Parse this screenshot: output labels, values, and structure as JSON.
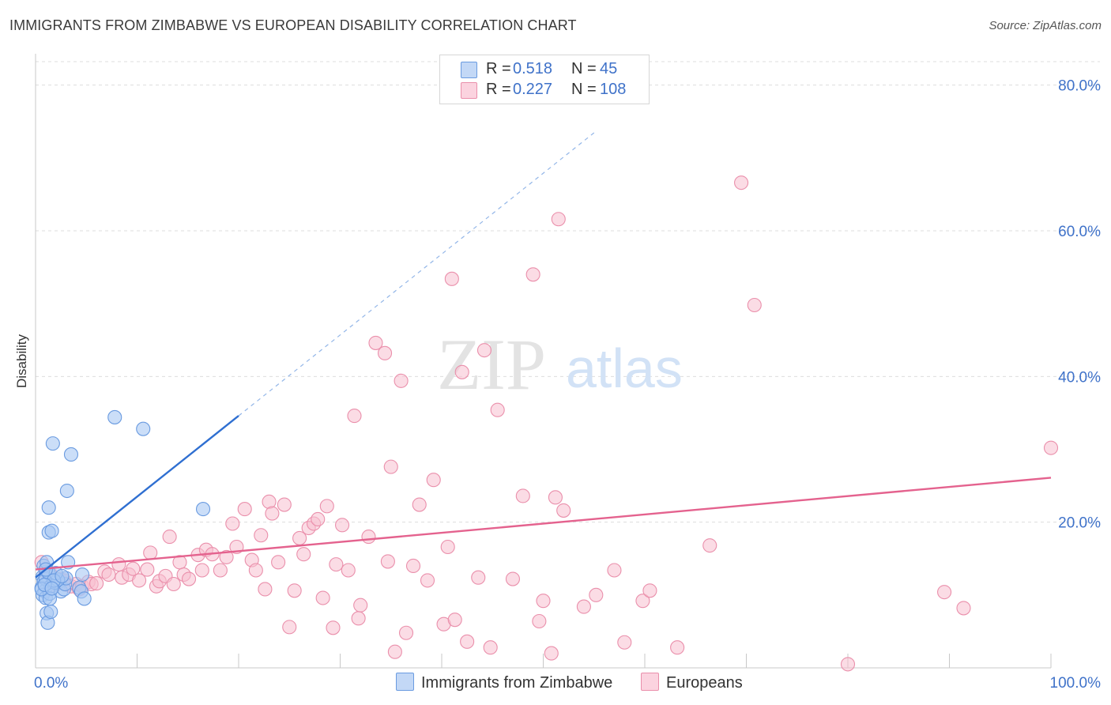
{
  "title": "IMMIGRANTS FROM ZIMBABWE VS EUROPEAN DISABILITY CORRELATION CHART",
  "source": "Source: ZipAtlas.com",
  "watermark": {
    "zip": "ZIP",
    "atlas": "atlas"
  },
  "legend": {
    "series": [
      {
        "r_label": "R =",
        "r_value": "0.518",
        "n_label": "N =",
        "n_value": "45"
      },
      {
        "r_label": "R =",
        "r_value": "0.227",
        "n_label": "N =",
        "n_value": "108"
      }
    ]
  },
  "bottom_legend": {
    "items": [
      "Immigrants from Zimbabwe",
      "Europeans"
    ]
  },
  "colors": {
    "blue_fill": "#a9c8f3",
    "blue_stroke": "#6a9be0",
    "blue_line": "#2f6fd1",
    "pink_fill": "#f7bfd0",
    "pink_stroke": "#ea8fab",
    "pink_line": "#e4628e",
    "accent_text": "#3f72c9",
    "grid": "#dddddd"
  },
  "chart_data": {
    "type": "scatter",
    "title": "IMMIGRANTS FROM ZIMBABWE VS EUROPEAN DISABILITY CORRELATION CHART",
    "xlabel": "",
    "ylabel": "Disability",
    "xlim": [
      0,
      100
    ],
    "ylim": [
      0,
      83
    ],
    "x_tick_labels": [
      "0.0%",
      "100.0%"
    ],
    "y_ticks": [
      20,
      40,
      60,
      80
    ],
    "y_tick_labels": [
      "20.0%",
      "40.0%",
      "60.0%",
      "80.0%"
    ],
    "grid": true,
    "legend_position": "top-center",
    "series": [
      {
        "name": "Immigrants from Zimbabwe",
        "color": "#a9c8f3",
        "trend": {
          "x": [
            0.0,
            20.0
          ],
          "y": [
            12.4,
            34.6
          ],
          "dashed_extension_to_x": 55
        },
        "points": [
          [
            0.7,
            12.5
          ],
          [
            0.8,
            11.8
          ],
          [
            0.6,
            11.0
          ],
          [
            0.9,
            10.5
          ],
          [
            1.0,
            12.2
          ],
          [
            1.2,
            13.2
          ],
          [
            0.8,
            14.0
          ],
          [
            1.1,
            14.5
          ],
          [
            1.3,
            13.0
          ],
          [
            1.5,
            11.2
          ],
          [
            0.7,
            10.0
          ],
          [
            1.0,
            9.6
          ],
          [
            1.4,
            10.2
          ],
          [
            1.1,
            7.5
          ],
          [
            1.2,
            6.2
          ],
          [
            1.5,
            7.7
          ],
          [
            1.4,
            9.5
          ],
          [
            1.3,
            18.6
          ],
          [
            1.6,
            18.8
          ],
          [
            1.3,
            22.0
          ],
          [
            1.7,
            30.8
          ],
          [
            2.3,
            11.8
          ],
          [
            2.5,
            10.5
          ],
          [
            2.8,
            10.8
          ],
          [
            2.9,
            11.5
          ],
          [
            3.2,
            14.5
          ],
          [
            3.0,
            12.3
          ],
          [
            3.1,
            24.3
          ],
          [
            3.5,
            29.3
          ],
          [
            4.3,
            11.0
          ],
          [
            4.5,
            10.5
          ],
          [
            4.6,
            12.8
          ],
          [
            4.8,
            9.5
          ],
          [
            7.8,
            34.4
          ],
          [
            10.6,
            32.8
          ],
          [
            16.5,
            21.8
          ],
          [
            1.9,
            11.7
          ],
          [
            2.2,
            12.1
          ],
          [
            0.6,
            10.8
          ],
          [
            2.0,
            13.0
          ],
          [
            1.8,
            12.0
          ],
          [
            0.9,
            11.4
          ],
          [
            1.6,
            10.9
          ],
          [
            2.6,
            12.6
          ],
          [
            1.0,
            13.5
          ]
        ]
      },
      {
        "name": "Europeans",
        "color": "#f7bfd0",
        "trend": {
          "x": [
            0.0,
            100.0
          ],
          "y": [
            13.5,
            26.1
          ]
        },
        "points": [
          [
            0.6,
            14.5
          ],
          [
            1.0,
            13.2
          ],
          [
            1.5,
            12.8
          ],
          [
            1.9,
            11.4
          ],
          [
            2.4,
            12.2
          ],
          [
            2.8,
            12.0
          ],
          [
            3.1,
            11.4
          ],
          [
            3.5,
            11.2
          ],
          [
            4.0,
            11.5
          ],
          [
            4.3,
            10.8
          ],
          [
            4.6,
            11.2
          ],
          [
            5.2,
            11.8
          ],
          [
            5.5,
            11.5
          ],
          [
            6.0,
            11.6
          ],
          [
            6.8,
            13.2
          ],
          [
            7.2,
            12.8
          ],
          [
            8.2,
            14.2
          ],
          [
            8.5,
            12.4
          ],
          [
            9.2,
            12.8
          ],
          [
            9.6,
            13.6
          ],
          [
            10.2,
            12.0
          ],
          [
            11.0,
            13.5
          ],
          [
            11.3,
            15.8
          ],
          [
            11.9,
            11.2
          ],
          [
            12.2,
            11.9
          ],
          [
            12.8,
            12.6
          ],
          [
            13.2,
            18.0
          ],
          [
            13.6,
            11.5
          ],
          [
            14.2,
            14.5
          ],
          [
            14.6,
            12.8
          ],
          [
            15.1,
            12.2
          ],
          [
            16.0,
            15.5
          ],
          [
            16.4,
            13.4
          ],
          [
            16.8,
            16.2
          ],
          [
            17.4,
            15.6
          ],
          [
            18.2,
            13.4
          ],
          [
            18.8,
            15.2
          ],
          [
            19.4,
            19.8
          ],
          [
            19.8,
            16.6
          ],
          [
            20.6,
            21.8
          ],
          [
            21.3,
            14.8
          ],
          [
            21.7,
            13.4
          ],
          [
            22.2,
            18.2
          ],
          [
            22.6,
            10.8
          ],
          [
            23.0,
            22.8
          ],
          [
            23.3,
            21.2
          ],
          [
            23.9,
            14.5
          ],
          [
            24.5,
            22.4
          ],
          [
            25.0,
            5.6
          ],
          [
            25.5,
            10.6
          ],
          [
            26.0,
            17.8
          ],
          [
            26.4,
            15.6
          ],
          [
            26.9,
            19.2
          ],
          [
            27.4,
            19.8
          ],
          [
            27.8,
            20.4
          ],
          [
            28.3,
            9.6
          ],
          [
            28.7,
            22.2
          ],
          [
            29.3,
            5.5
          ],
          [
            29.6,
            14.2
          ],
          [
            30.2,
            19.6
          ],
          [
            30.8,
            13.4
          ],
          [
            31.4,
            34.6
          ],
          [
            31.8,
            6.8
          ],
          [
            32.0,
            8.6
          ],
          [
            32.8,
            18.0
          ],
          [
            33.5,
            44.6
          ],
          [
            34.4,
            43.2
          ],
          [
            34.7,
            14.6
          ],
          [
            35.0,
            27.6
          ],
          [
            35.4,
            2.2
          ],
          [
            36.0,
            39.4
          ],
          [
            36.5,
            4.8
          ],
          [
            37.2,
            14.0
          ],
          [
            37.8,
            22.4
          ],
          [
            38.6,
            12.0
          ],
          [
            39.2,
            25.8
          ],
          [
            40.2,
            6.0
          ],
          [
            40.6,
            16.6
          ],
          [
            41.0,
            53.4
          ],
          [
            41.3,
            6.6
          ],
          [
            42.0,
            40.6
          ],
          [
            42.5,
            3.6
          ],
          [
            43.6,
            12.4
          ],
          [
            44.2,
            43.6
          ],
          [
            44.8,
            2.8
          ],
          [
            45.5,
            35.4
          ],
          [
            47.0,
            12.2
          ],
          [
            48.0,
            23.6
          ],
          [
            49.0,
            54.0
          ],
          [
            49.6,
            6.4
          ],
          [
            50.0,
            9.2
          ],
          [
            50.8,
            2.0
          ],
          [
            51.2,
            23.4
          ],
          [
            51.5,
            61.6
          ],
          [
            52.0,
            21.6
          ],
          [
            54.0,
            8.4
          ],
          [
            55.2,
            10.0
          ],
          [
            57.0,
            13.4
          ],
          [
            58.0,
            3.5
          ],
          [
            59.8,
            9.2
          ],
          [
            60.5,
            10.6
          ],
          [
            63.2,
            2.8
          ],
          [
            66.4,
            16.8
          ],
          [
            69.5,
            66.6
          ],
          [
            70.8,
            49.8
          ],
          [
            80.0,
            0.5
          ],
          [
            89.5,
            10.4
          ],
          [
            91.4,
            8.2
          ],
          [
            100.0,
            30.2
          ]
        ]
      }
    ]
  }
}
